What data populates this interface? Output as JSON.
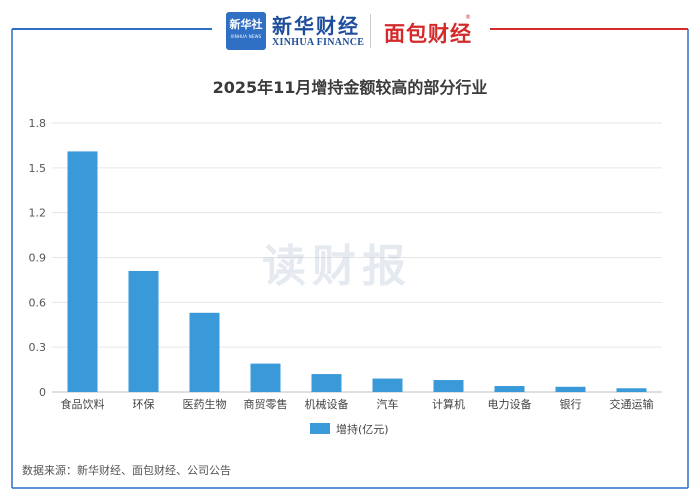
{
  "header": {
    "xinhua_badge_text": "新华社",
    "xinhua_badge_sub": "XINHUA NEWS",
    "xinhua_finance_name": "新华财经",
    "xinhua_finance_en": "XINHUA FINANCE",
    "mianbao_name": "面包财经",
    "mianbao_mark": "®"
  },
  "watermark": "读财报",
  "source": "数据来源：新华财经、面包财经、公司公告",
  "colors": {
    "bar": "#3a9ad9",
    "top_line": "#2f6fc4",
    "accent_red": "#d42a2a",
    "grid": "#e6e6e6"
  },
  "chart_data": {
    "type": "bar",
    "title": "2025年11月增持金额较高的部分行业",
    "categories": [
      "食品饮料",
      "环保",
      "医药生物",
      "商贸零售",
      "机械设备",
      "汽车",
      "计算机",
      "电力设备",
      "银行",
      "交通运输"
    ],
    "series": [
      {
        "name": "增持(亿元)",
        "values": [
          1.61,
          0.81,
          0.53,
          0.19,
          0.12,
          0.09,
          0.08,
          0.04,
          0.035,
          0.025
        ]
      }
    ],
    "yticks": [
      "0",
      "0.3",
      "0.6",
      "0.9",
      "1.2",
      "1.5",
      "1.8"
    ],
    "ylim": [
      0,
      1.8
    ],
    "grid": true,
    "legend_position": "bottom"
  }
}
